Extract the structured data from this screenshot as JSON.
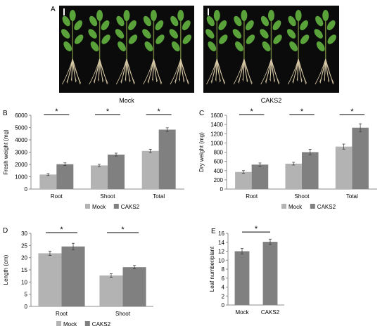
{
  "panels": {
    "a": "A",
    "b": "B",
    "c": "C",
    "d": "D",
    "e": "E"
  },
  "photos": [
    {
      "caption": "Mock",
      "plants": 5
    },
    {
      "caption": "CAKS2",
      "plants": 5
    }
  ],
  "colors": {
    "mock": "#b3b3b3",
    "caks2": "#808080",
    "error_bar": "#404040",
    "axis": "#8c8c8c",
    "leaf": "#5aa33b",
    "root": "#d8c9a6",
    "photo_bg": "#0b0b0b"
  },
  "chart_data": [
    {
      "panel": "B",
      "type": "bar",
      "categories": [
        "Root",
        "Shoot",
        "Total"
      ],
      "series": [
        {
          "name": "Mock",
          "values": [
            1180,
            1920,
            3100
          ],
          "errors": [
            80,
            100,
            130
          ]
        },
        {
          "name": "CAKS2",
          "values": [
            2020,
            2800,
            4830
          ],
          "errors": [
            110,
            120,
            150
          ]
        }
      ],
      "ylabel": "Fresh weight (mg)",
      "ylim": [
        0,
        6000
      ],
      "yticks": [
        "0",
        "1000",
        "2000",
        "3000",
        "4000",
        "5000",
        "6000"
      ],
      "significance": [
        "*",
        "*",
        "*"
      ],
      "legend": "bottom",
      "grid": false
    },
    {
      "panel": "C",
      "type": "bar",
      "categories": [
        "Root",
        "Shoot",
        "Total"
      ],
      "series": [
        {
          "name": "Mock",
          "values": [
            370,
            550,
            920
          ],
          "errors": [
            30,
            30,
            55
          ]
        },
        {
          "name": "CAKS2",
          "values": [
            530,
            800,
            1330
          ],
          "errors": [
            35,
            60,
            85
          ]
        }
      ],
      "ylabel": "Dry weight (mg)",
      "ylim": [
        0,
        1600
      ],
      "yticks": [
        "0",
        "200",
        "400",
        "600",
        "800",
        "1000",
        "1200",
        "1400",
        "1600"
      ],
      "significance": [
        "*",
        "*",
        "*"
      ],
      "legend": "bottom",
      "grid": false
    },
    {
      "panel": "D",
      "type": "bar",
      "categories": [
        "Root",
        "Shoot"
      ],
      "series": [
        {
          "name": "Mock",
          "values": [
            21.8,
            12.7
          ],
          "errors": [
            0.9,
            0.7
          ]
        },
        {
          "name": "CAKS2",
          "values": [
            24.6,
            16.1
          ],
          "errors": [
            1.3,
            0.7
          ]
        }
      ],
      "ylabel": "Length (cm)",
      "ylim": [
        0,
        30
      ],
      "yticks": [
        "0",
        "5",
        "10",
        "15",
        "20",
        "25",
        "30"
      ],
      "significance": [
        "*",
        "*"
      ],
      "legend": "bottom",
      "grid": false
    },
    {
      "panel": "E",
      "type": "bar",
      "categories": [
        "Mock",
        "CAKS2"
      ],
      "series": [
        {
          "name": "",
          "values": [
            12.0,
            14.1
          ],
          "errors": [
            0.6,
            0.6
          ]
        }
      ],
      "ylabel": "Leaf number/plant",
      "ylim": [
        0,
        16
      ],
      "yticks": [
        "0",
        "2",
        "4",
        "6",
        "8",
        "10",
        "12",
        "14",
        "16"
      ],
      "significance": [
        "*"
      ],
      "legend": "none",
      "grid": false
    }
  ]
}
